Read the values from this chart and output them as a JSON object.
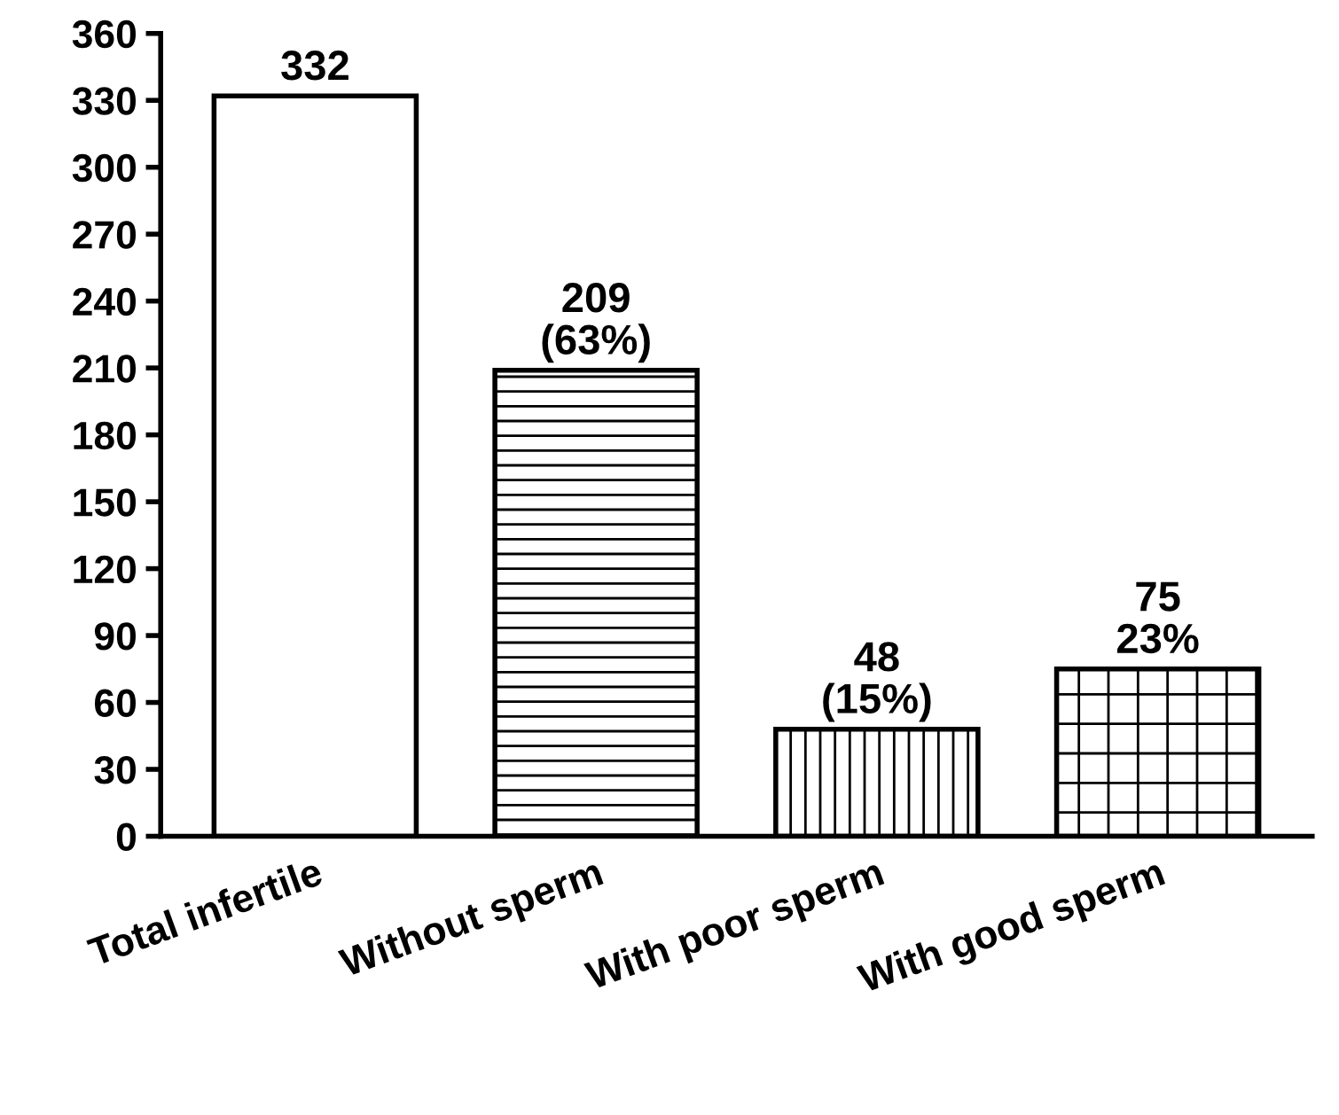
{
  "chart_data": {
    "type": "bar",
    "categories": [
      "Total infertile",
      "Without sperm",
      "With poor sperm",
      "With good sperm"
    ],
    "values": [
      332,
      209,
      48,
      75
    ],
    "color": "#ffffff",
    "value_labels": [
      "332",
      "209\n(63%)",
      "48\n(15%)",
      "75\n23%"
    ],
    "ylim": [
      0,
      360
    ],
    "yticks": [
      0,
      30,
      60,
      90,
      120,
      150,
      180,
      210,
      240,
      270,
      300,
      330,
      360
    ],
    "grid": false,
    "legend": false
  }
}
